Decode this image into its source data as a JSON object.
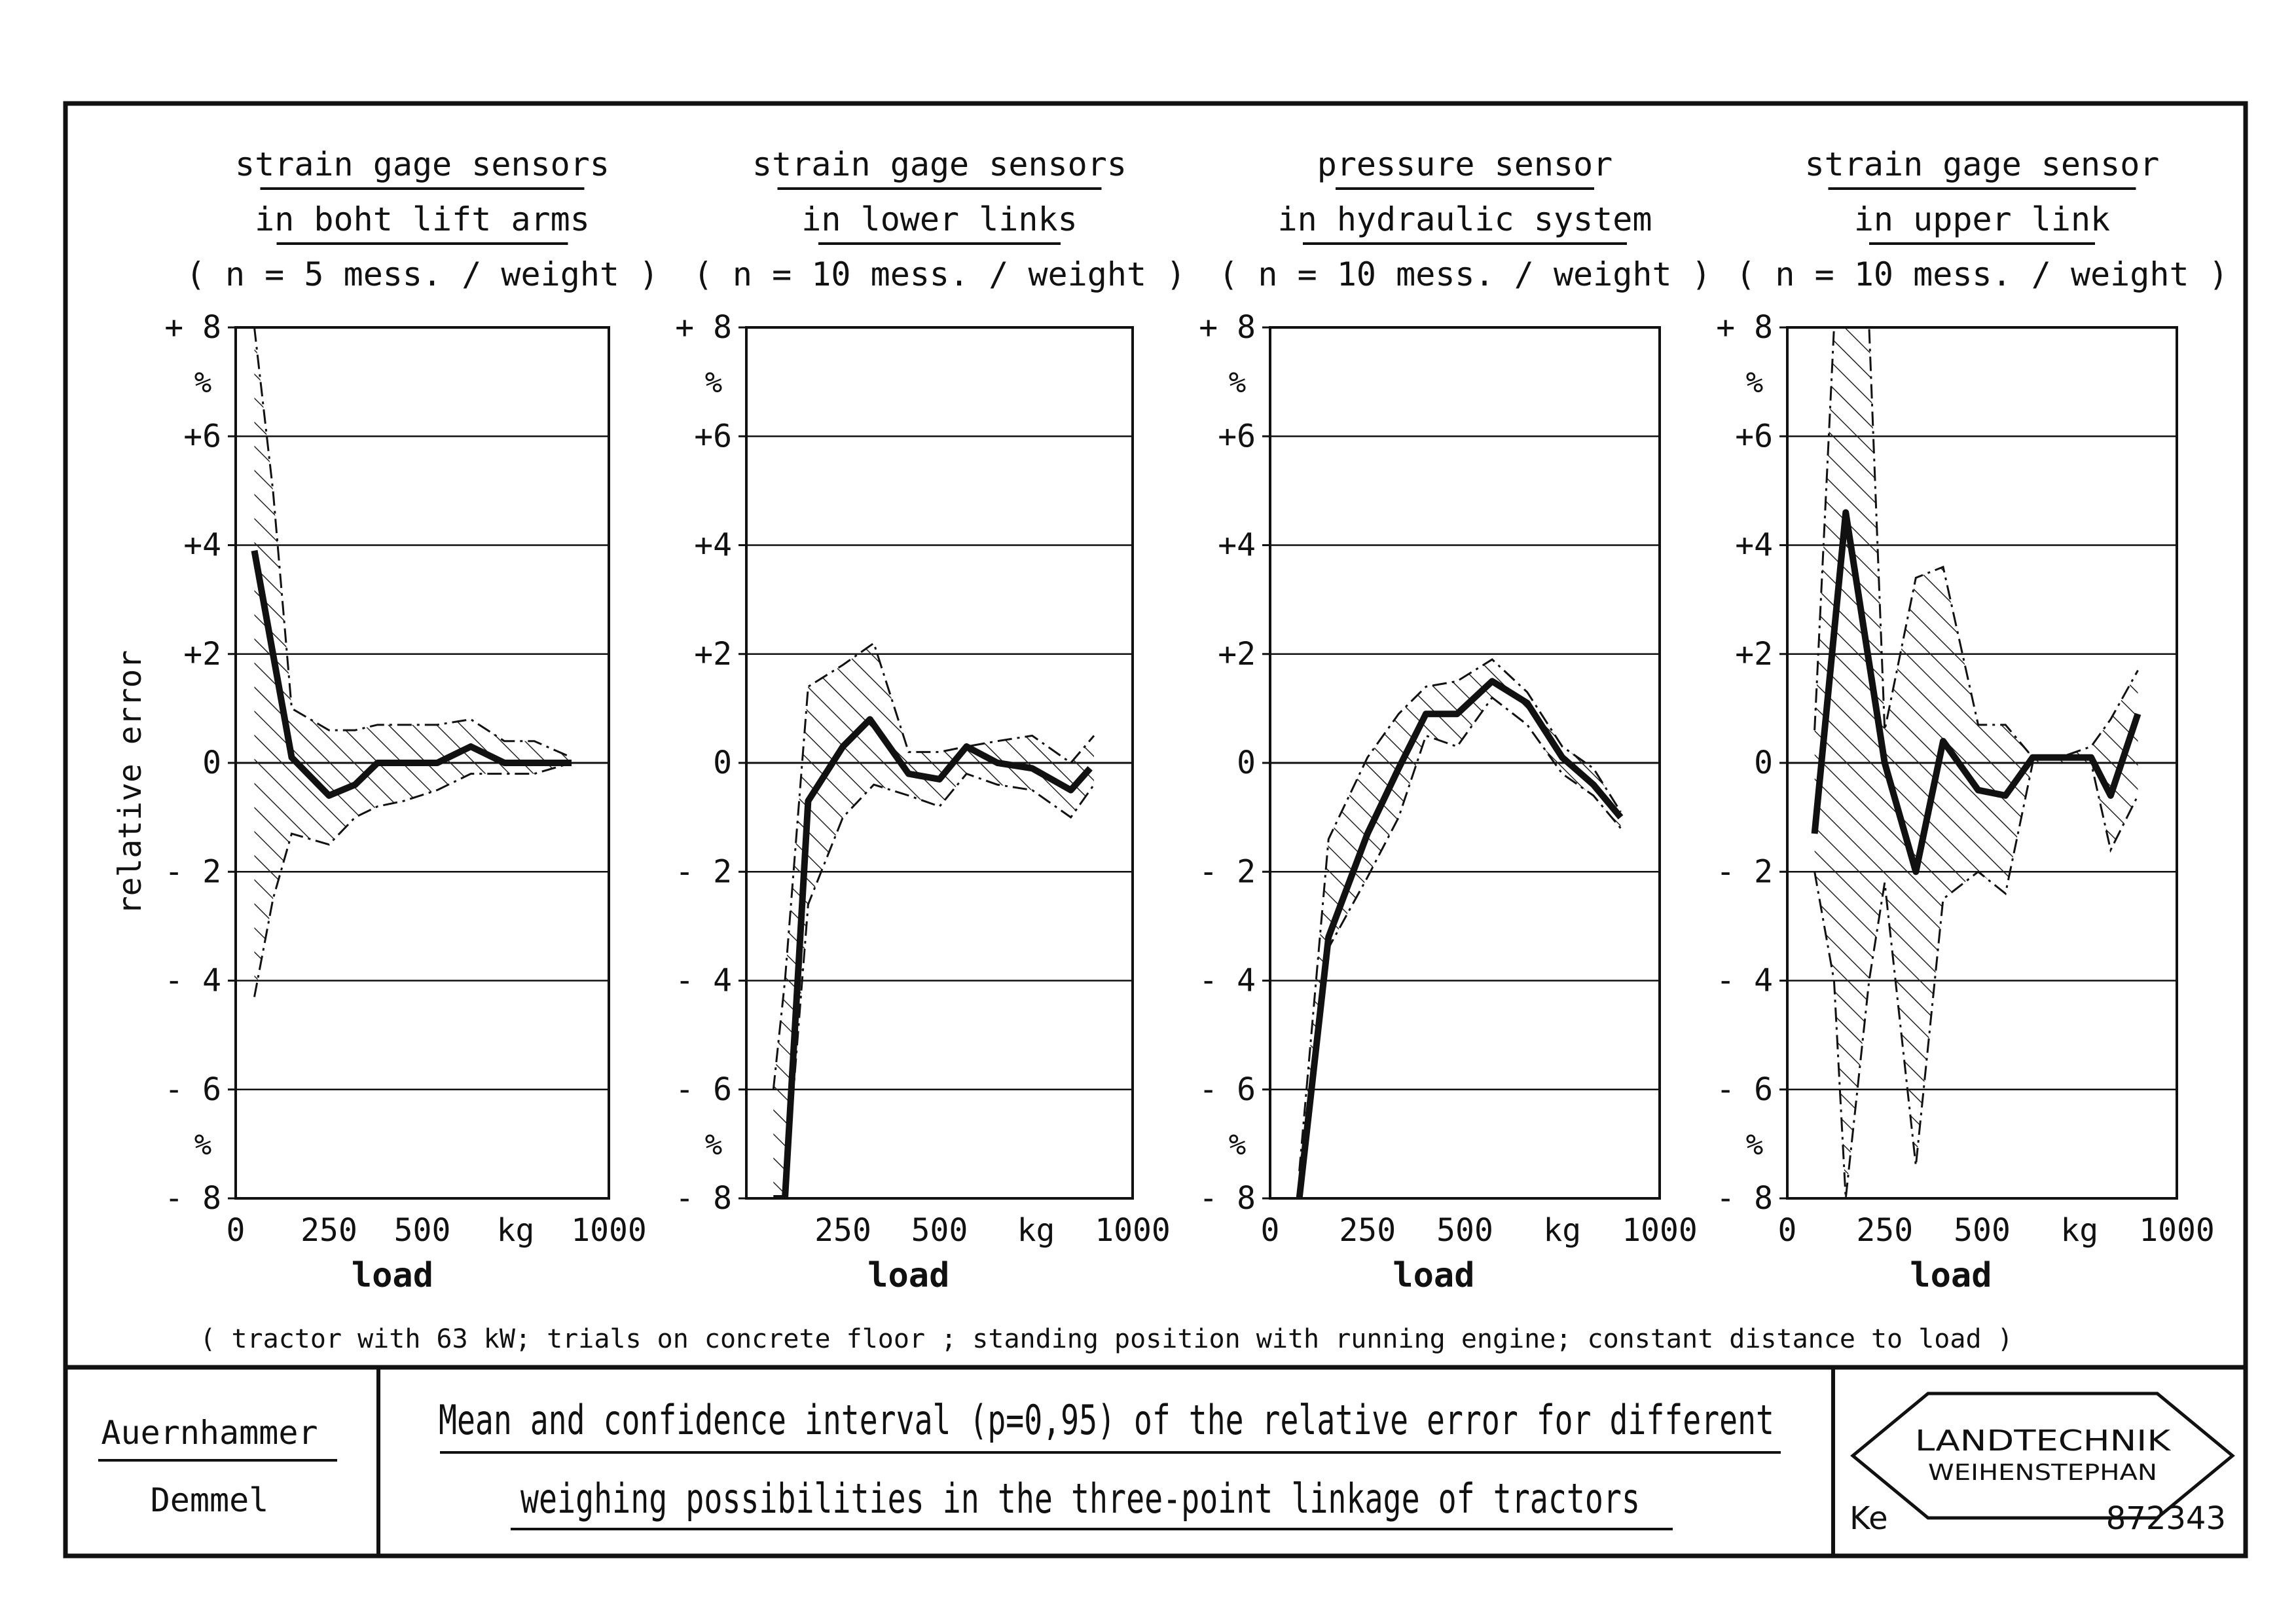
{
  "colors": {
    "ink": "#111111",
    "paper": "#ffffff",
    "hatch": "#222222"
  },
  "axis_common": {
    "ylabel": "relative error",
    "y_ticks": [
      "+ 8",
      "+6",
      "+4",
      "+2",
      "0",
      "- 2",
      "- 4",
      "- 6",
      "- 8"
    ],
    "y_unit_top": "%",
    "y_unit_bottom": "%",
    "xlabel": "load",
    "x_unit": "kg"
  },
  "note": "( tractor with 63 kW; trials on concrete floor ; standing position with running engine; constant distance to load )",
  "chart_data": [
    {
      "type": "line",
      "title_lines": [
        "strain gage sensors",
        "in boht lift arms",
        "( n = 5 mess. / weight )"
      ],
      "xlim": [
        0,
        1000
      ],
      "ylim": [
        -8,
        8
      ],
      "x_tick_labels": [
        "0",
        "250",
        "500",
        "kg",
        "1000"
      ],
      "series": [
        {
          "role": "mean",
          "x": [
            50,
            150,
            250,
            320,
            380,
            450,
            540,
            630,
            720,
            800,
            900
          ],
          "y": [
            3.9,
            0.1,
            -0.6,
            -0.4,
            0.0,
            0.0,
            0.0,
            0.3,
            0.0,
            0.0,
            0.0
          ]
        },
        {
          "role": "upper",
          "x": [
            50,
            100,
            150,
            250,
            320,
            380,
            450,
            540,
            630,
            720,
            800,
            900
          ],
          "y": [
            8.0,
            5.0,
            1.0,
            0.6,
            0.6,
            0.7,
            0.7,
            0.7,
            0.8,
            0.4,
            0.4,
            0.1
          ]
        },
        {
          "role": "lower",
          "x": [
            50,
            100,
            150,
            250,
            320,
            380,
            450,
            540,
            630,
            720,
            800,
            900
          ],
          "y": [
            -4.3,
            -2.5,
            -1.3,
            -1.5,
            -1.0,
            -0.8,
            -0.7,
            -0.5,
            -0.2,
            -0.2,
            -0.2,
            0.0
          ]
        }
      ]
    },
    {
      "type": "line",
      "title_lines": [
        "strain gage sensors",
        "in lower links",
        "( n = 10 mess. / weight )"
      ],
      "xlim": [
        0,
        1000
      ],
      "ylim": [
        -8,
        8
      ],
      "x_tick_labels": [
        "250",
        "500",
        "kg",
        "1000"
      ],
      "series": [
        {
          "role": "mean",
          "x": [
            70,
            100,
            160,
            250,
            320,
            420,
            500,
            570,
            650,
            740,
            840,
            890
          ],
          "y": [
            -8.0,
            -8.0,
            -0.7,
            0.3,
            0.8,
            -0.2,
            -0.3,
            0.3,
            0.0,
            -0.1,
            -0.5,
            -0.1
          ]
        },
        {
          "role": "upper",
          "x": [
            70,
            100,
            160,
            250,
            330,
            420,
            500,
            570,
            650,
            740,
            840,
            900
          ],
          "y": [
            -6.0,
            -4.0,
            1.4,
            1.8,
            2.2,
            0.2,
            0.2,
            0.3,
            0.4,
            0.5,
            0.0,
            0.5
          ]
        },
        {
          "role": "lower",
          "x": [
            70,
            100,
            160,
            250,
            330,
            420,
            500,
            570,
            650,
            740,
            840,
            900
          ],
          "y": [
            -8.0,
            -8.0,
            -2.6,
            -1.0,
            -0.4,
            -0.6,
            -0.8,
            -0.2,
            -0.4,
            -0.5,
            -1.0,
            -0.4
          ]
        }
      ]
    },
    {
      "type": "line",
      "title_lines": [
        "pressure sensor",
        "in hydraulic system",
        "( n = 10 mess. / weight )"
      ],
      "xlim": [
        0,
        1000
      ],
      "ylim": [
        -8,
        8
      ],
      "x_tick_labels": [
        "0",
        "250",
        "500",
        "kg",
        "1000"
      ],
      "series": [
        {
          "role": "mean",
          "x": [
            75,
            150,
            250,
            330,
            400,
            480,
            570,
            660,
            750,
            830,
            900
          ],
          "y": [
            -8.0,
            -3.2,
            -1.3,
            -0.1,
            0.9,
            0.9,
            1.5,
            1.1,
            0.1,
            -0.4,
            -1.0
          ]
        },
        {
          "role": "upper",
          "x": [
            75,
            150,
            250,
            330,
            400,
            480,
            570,
            660,
            750,
            830,
            900
          ],
          "y": [
            -7.5,
            -1.4,
            0.1,
            0.9,
            1.4,
            1.5,
            1.9,
            1.3,
            0.3,
            -0.1,
            -0.9
          ]
        },
        {
          "role": "lower",
          "x": [
            75,
            150,
            250,
            330,
            400,
            480,
            570,
            660,
            750,
            830,
            900
          ],
          "y": [
            -8.0,
            -3.4,
            -2.1,
            -1.0,
            0.5,
            0.3,
            1.2,
            0.7,
            -0.2,
            -0.6,
            -1.2
          ]
        }
      ]
    },
    {
      "type": "line",
      "title_lines": [
        "strain gage sensor",
        "in upper link",
        "( n = 10 mess. / weight )"
      ],
      "xlim": [
        0,
        1000
      ],
      "ylim": [
        -8,
        8
      ],
      "x_tick_labels": [
        "0",
        "250",
        "500",
        "kg",
        "1000"
      ],
      "series": [
        {
          "role": "mean",
          "x": [
            70,
            150,
            250,
            330,
            400,
            490,
            560,
            630,
            700,
            780,
            830,
            900
          ],
          "y": [
            -1.3,
            4.6,
            0.0,
            -2.0,
            0.4,
            -0.5,
            -0.6,
            0.1,
            0.1,
            0.1,
            -0.6,
            0.9
          ]
        },
        {
          "role": "upper",
          "x": [
            70,
            120,
            150,
            210,
            250,
            330,
            400,
            490,
            560,
            630,
            700,
            780,
            830,
            900
          ],
          "y": [
            0.6,
            8.0,
            8.0,
            8.0,
            0.6,
            3.4,
            3.6,
            0.7,
            0.7,
            0.1,
            0.1,
            0.3,
            0.8,
            1.7
          ]
        },
        {
          "role": "lower",
          "x": [
            70,
            120,
            150,
            210,
            250,
            330,
            400,
            490,
            560,
            630,
            700,
            780,
            830,
            900
          ],
          "y": [
            -2.0,
            -4.0,
            -8.0,
            -4.0,
            -2.2,
            -7.4,
            -2.5,
            -2.0,
            -2.4,
            0.0,
            0.0,
            0.0,
            -1.6,
            -0.6
          ]
        }
      ]
    }
  ],
  "footer": {
    "authors": [
      "Auernhammer",
      "Demmel"
    ],
    "title_line1": "Mean and confidence interval (p=0,95) of the relative error for different",
    "title_line2": "weighing possibilities in the three-point linkage of tractors",
    "logo_line1": "LANDTECHNIK",
    "logo_line2": "WEIHENSTEPHAN",
    "ref_initials": "Ke",
    "ref_number": "872343"
  }
}
